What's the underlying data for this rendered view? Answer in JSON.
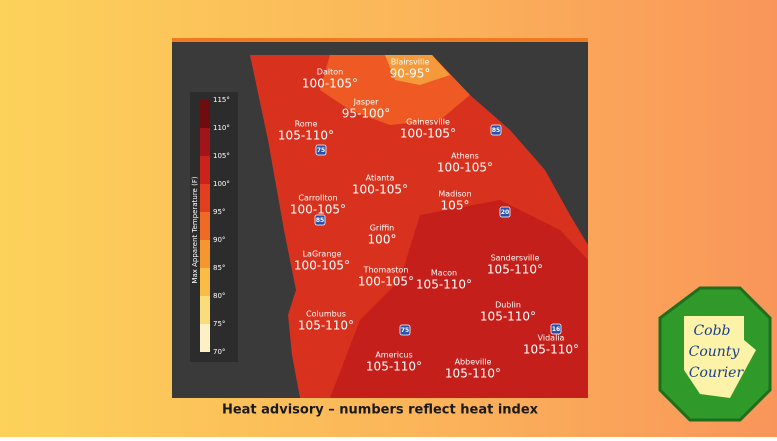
{
  "map": {
    "legend": {
      "title": "Max Apparent Temperature (F)",
      "ticks": [
        "115°",
        "110°",
        "105°",
        "100°",
        "95°",
        "90°",
        "85°",
        "80°",
        "75°",
        "70°"
      ]
    },
    "cities": [
      {
        "name": "Blairsville",
        "temp": "90-95°"
      },
      {
        "name": "Dalton",
        "temp": "100-105°"
      },
      {
        "name": "Jasper",
        "temp": "95-100°"
      },
      {
        "name": "Rome",
        "temp": "105-110°"
      },
      {
        "name": "Gainesville",
        "temp": "100-105°"
      },
      {
        "name": "Athens",
        "temp": "100-105°"
      },
      {
        "name": "Atlanta",
        "temp": "100-105°"
      },
      {
        "name": "Carrollton",
        "temp": "100-105°"
      },
      {
        "name": "Madison",
        "temp": "105°"
      },
      {
        "name": "Griffin",
        "temp": "100°"
      },
      {
        "name": "LaGrange",
        "temp": "100-105°"
      },
      {
        "name": "Sandersville",
        "temp": "105-110°"
      },
      {
        "name": "Thomaston",
        "temp": "100-105°"
      },
      {
        "name": "Macon",
        "temp": "105-110°"
      },
      {
        "name": "Columbus",
        "temp": "105-110°"
      },
      {
        "name": "Dublin",
        "temp": "105-110°"
      },
      {
        "name": "Vidalia",
        "temp": "105-110°"
      },
      {
        "name": "Americus",
        "temp": "105-110°"
      },
      {
        "name": "Abbeville",
        "temp": "105-110°"
      }
    ],
    "interstates": [
      "85",
      "75",
      "85",
      "20",
      "75",
      "16"
    ]
  },
  "caption": "Heat advisory – numbers reflect heat index",
  "logo": {
    "line1": "Cobb",
    "line2": "County",
    "line3": "Courier"
  }
}
